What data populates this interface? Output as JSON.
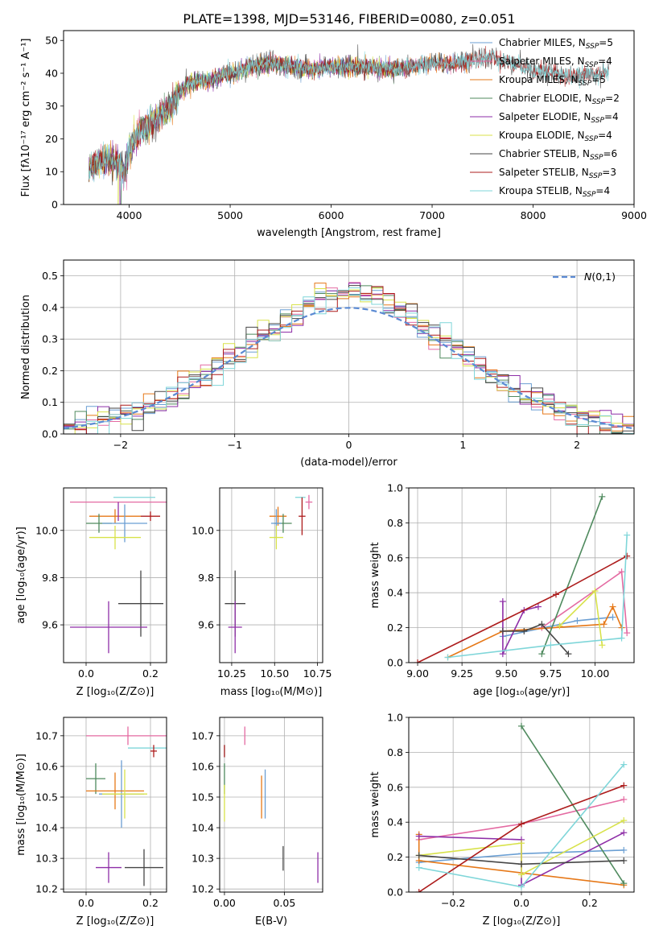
{
  "figure_title": "PLATE=1398, MJD=53146, FIBERID=0080, z=0.051",
  "colors": [
    "#6b9fd3",
    "#e46aa2",
    "#e67818",
    "#4f8a5e",
    "#8e2ea7",
    "#d8e24a",
    "#464646",
    "#ad1c1c",
    "#7fd6d9"
  ],
  "chart_data": [
    {
      "id": "spectrum",
      "type": "line",
      "title": "PLATE=1398, MJD=53146, FIBERID=0080, z=0.051",
      "xlabel": "wavelength [Angstrom, rest frame]",
      "ylabel": "Flux [fλ10⁻¹⁷ erg cm⁻² s⁻¹ A⁻¹]",
      "xlim": [
        3350,
        9000
      ],
      "ylim": [
        0,
        53
      ],
      "xticks": [
        4000,
        5000,
        6000,
        7000,
        8000,
        9000
      ],
      "yticks": [
        0,
        10,
        20,
        30,
        40,
        50
      ],
      "grid": false,
      "legend_position": "upper right",
      "continuum": {
        "x": [
          3600,
          3700,
          3800,
          3900,
          3950,
          4000,
          4100,
          4200,
          4300,
          4400,
          4500,
          4600,
          4800,
          5000,
          5200,
          5400,
          5600,
          5800,
          6000,
          6200,
          6400,
          6600,
          6800,
          7000,
          7200,
          7400,
          7600,
          7800,
          8000,
          8200,
          8400,
          8600,
          8750
        ],
        "y": [
          11,
          13,
          14,
          13,
          9,
          17,
          22,
          24,
          27,
          29,
          34,
          37,
          38,
          40,
          42,
          43,
          42,
          41,
          42,
          42,
          42,
          41,
          42,
          43,
          43,
          44,
          45,
          43,
          41,
          40,
          39,
          40,
          40
        ]
      },
      "series": [
        {
          "name": "Chabrier MILES, N_SSP=5",
          "legend_main": "Chabrier MILES, N",
          "legend_sub": "SSP",
          "legend_tail": "=5",
          "xmax": 7400
        },
        {
          "name": "Salpeter MILES, N_SSP=4",
          "legend_main": "Salpeter MILES, N",
          "legend_sub": "SSP",
          "legend_tail": "=4",
          "xmax": 7400
        },
        {
          "name": "Kroupa MILES, N_SSP=5",
          "legend_main": "Kroupa MILES, N",
          "legend_sub": "SSP",
          "legend_tail": "=5",
          "xmax": 7400,
          "drops": [
            7405
          ]
        },
        {
          "name": "Chabrier ELODIE, N_SSP=2",
          "legend_main": "Chabrier ELODIE, N",
          "legend_sub": "SSP",
          "legend_tail": "=2",
          "xmax": 6790,
          "drops": [
            3920
          ]
        },
        {
          "name": "Salpeter ELODIE, N_SSP=4",
          "legend_main": "Salpeter ELODIE, N",
          "legend_sub": "SSP",
          "legend_tail": "=4",
          "xmax": 6790,
          "drops": [
            3910
          ]
        },
        {
          "name": "Kroupa ELODIE, N_SSP=4",
          "legend_main": "Kroupa ELODIE, N",
          "legend_sub": "SSP",
          "legend_tail": "=4",
          "xmax": 6790,
          "drops": [
            3890,
            6795
          ]
        },
        {
          "name": "Chabrier STELIB, N_SSP=6",
          "legend_main": "Chabrier STELIB, N",
          "legend_sub": "SSP",
          "legend_tail": "=6",
          "xmax": 8750
        },
        {
          "name": "Salpeter STELIB, N_SSP=3",
          "legend_main": "Salpeter STELIB, N",
          "legend_sub": "SSP",
          "legend_tail": "=3",
          "xmax": 8750
        },
        {
          "name": "Kroupa STELIB, N_SSP=4",
          "legend_main": "Kroupa STELIB, N",
          "legend_sub": "SSP",
          "legend_tail": "=4",
          "xmax": 8750
        }
      ]
    },
    {
      "id": "residuals",
      "type": "step",
      "xlabel": "(data-model)/error",
      "ylabel": "Normed distribution",
      "xlim": [
        -2.5,
        2.5
      ],
      "ylim": [
        0,
        0.55
      ],
      "xticks": [
        -2,
        -1,
        0,
        1,
        2
      ],
      "yticks": [
        0.0,
        0.1,
        0.2,
        0.3,
        0.4,
        0.5
      ],
      "grid": true,
      "bin_edges_start": -2.5,
      "bin_width": 0.1,
      "normal_curve": {
        "label": "N(0,1)",
        "mean": 0,
        "sigma": 1,
        "style": "dashed"
      },
      "legend_position": "upper right"
    },
    {
      "id": "age-vs-Z",
      "type": "errorbar",
      "xlabel": "Z [log₁₀(Z/Z⊙)]",
      "ylabel": "age  [log₁₀(age/yr)]",
      "xlim": [
        -0.07,
        0.25
      ],
      "ylim": [
        9.44,
        10.18
      ],
      "xticks": [
        0.0,
        0.2
      ],
      "yticks": [
        9.6,
        9.8,
        10.0
      ],
      "grid": true,
      "points": [
        {
          "series": 8,
          "x": 0.15,
          "y": 10.14,
          "xerr": 0.065,
          "yerr": 0.0
        },
        {
          "series": 1,
          "x": 0.1,
          "y": 10.12,
          "xerr": 0.15,
          "yerr": 0.0
        },
        {
          "series": 2,
          "x": 0.09,
          "y": 10.06,
          "xerr": 0.08,
          "yerr": 0.03
        },
        {
          "series": 7,
          "x": 0.2,
          "y": 10.06,
          "xerr": 0.03,
          "yerr": 0.02
        },
        {
          "series": 3,
          "x": 0.04,
          "y": 10.03,
          "xerr": 0.04,
          "yerr": 0.04
        },
        {
          "series": 0,
          "x": 0.12,
          "y": 10.03,
          "xerr": 0.07,
          "yerr": 0.08
        },
        {
          "series": 5,
          "x": 0.09,
          "y": 9.97,
          "xerr": 0.08,
          "yerr": 0.05
        },
        {
          "series": 4,
          "x": 0.1,
          "y": 10.08,
          "xerr": 0.0,
          "yerr": 0.04
        },
        {
          "series": 6,
          "x": 0.17,
          "y": 9.69,
          "xerr": 0.07,
          "yerr": 0.14
        },
        {
          "series": 4,
          "x": 0.07,
          "y": 9.59,
          "xerr": 0.12,
          "yerr": 0.11
        }
      ]
    },
    {
      "id": "age-vs-mass",
      "type": "errorbar",
      "xlabel": "mass [log₁₀(M/M⊙)]",
      "ylabel": "",
      "xlim": [
        10.18,
        10.78
      ],
      "ylim": [
        9.44,
        10.18
      ],
      "xticks": [
        10.25,
        10.5,
        10.75
      ],
      "yticks": [
        9.6,
        9.8,
        10.0
      ],
      "grid": true,
      "points": [
        {
          "series": 8,
          "x": 10.65,
          "y": 10.14,
          "xerr": 0.03,
          "yerr": 0.0
        },
        {
          "series": 1,
          "x": 10.7,
          "y": 10.12,
          "xerr": 0.02,
          "yerr": 0.03
        },
        {
          "series": 2,
          "x": 10.52,
          "y": 10.06,
          "xerr": 0.05,
          "yerr": 0.04
        },
        {
          "series": 7,
          "x": 10.66,
          "y": 10.06,
          "xerr": 0.02,
          "yerr": 0.08
        },
        {
          "series": 3,
          "x": 10.55,
          "y": 10.03,
          "xerr": 0.05,
          "yerr": 0.04
        },
        {
          "series": 0,
          "x": 10.51,
          "y": 10.03,
          "xerr": 0.03,
          "yerr": 0.06
        },
        {
          "series": 5,
          "x": 10.51,
          "y": 9.97,
          "xerr": 0.04,
          "yerr": 0.05
        },
        {
          "series": 6,
          "x": 10.27,
          "y": 9.69,
          "xerr": 0.06,
          "yerr": 0.14
        },
        {
          "series": 4,
          "x": 10.27,
          "y": 9.59,
          "xerr": 0.04,
          "yerr": 0.11
        }
      ]
    },
    {
      "id": "weight-vs-age",
      "type": "line",
      "xlabel": "age  [log₁₀(age/yr)]",
      "ylabel": "mass weight",
      "xlim": [
        8.95,
        10.22
      ],
      "ylim": [
        0,
        1.0
      ],
      "xticks": [
        9.0,
        9.25,
        9.5,
        9.75,
        10.0
      ],
      "yticks": [
        0.0,
        0.2,
        0.4,
        0.6,
        0.8,
        1.0
      ],
      "grid": true,
      "series": [
        {
          "series": 0,
          "x": [
            9.48,
            9.9,
            10.1
          ],
          "y": [
            0.15,
            0.24,
            0.26
          ]
        },
        {
          "series": 1,
          "x": [
            9.7,
            10.15,
            10.18
          ],
          "y": [
            0.2,
            0.52,
            0.17
          ]
        },
        {
          "series": 2,
          "x": [
            9.17,
            9.48,
            10.05,
            10.1,
            10.15
          ],
          "y": [
            0.03,
            0.18,
            0.22,
            0.32,
            0.2
          ]
        },
        {
          "series": 3,
          "x": [
            9.7,
            10.04
          ],
          "y": [
            0.05,
            0.95
          ]
        },
        {
          "series": 4,
          "x": [
            9.48,
            9.48,
            9.6,
            9.68
          ],
          "y": [
            0.35,
            0.05,
            0.3,
            0.32
          ]
        },
        {
          "series": 5,
          "x": [
            9.8,
            10.0,
            10.04
          ],
          "y": [
            0.21,
            0.41,
            0.1
          ]
        },
        {
          "series": 6,
          "x": [
            9.48,
            9.6,
            9.7,
            9.85
          ],
          "y": [
            0.18,
            0.18,
            0.22,
            0.05
          ]
        },
        {
          "series": 7,
          "x": [
            9.0,
            9.78,
            10.18
          ],
          "y": [
            0.0,
            0.39,
            0.61
          ]
        },
        {
          "series": 8,
          "x": [
            9.17,
            9.75,
            10.15,
            10.18
          ],
          "y": [
            0.03,
            0.1,
            0.14,
            0.73
          ]
        }
      ]
    },
    {
      "id": "mass-vs-Z",
      "type": "errorbar",
      "xlabel": "Z [log₁₀(Z/Z⊙)]",
      "ylabel": "mass [log₁₀(M/M⊙)]",
      "xlim": [
        -0.07,
        0.25
      ],
      "ylim": [
        10.19,
        10.76
      ],
      "xticks": [
        0.0,
        0.2
      ],
      "yticks": [
        10.2,
        10.3,
        10.4,
        10.5,
        10.6,
        10.7
      ],
      "grid": true,
      "points": [
        {
          "series": 1,
          "x": 0.13,
          "y": 10.7,
          "xerr": 0.13,
          "yerr": 0.03
        },
        {
          "series": 8,
          "x": 0.19,
          "y": 10.66,
          "xerr": 0.06,
          "yerr": 0.0
        },
        {
          "series": 7,
          "x": 0.21,
          "y": 10.65,
          "xerr": 0.01,
          "yerr": 0.02
        },
        {
          "series": 3,
          "x": 0.03,
          "y": 10.56,
          "xerr": 0.03,
          "yerr": 0.05
        },
        {
          "series": 0,
          "x": 0.11,
          "y": 10.51,
          "xerr": 0.07,
          "yerr": 0.11
        },
        {
          "series": 2,
          "x": 0.09,
          "y": 10.52,
          "xerr": 0.09,
          "yerr": 0.06
        },
        {
          "series": 5,
          "x": 0.12,
          "y": 10.51,
          "xerr": 0.07,
          "yerr": 0.08
        },
        {
          "series": 6,
          "x": 0.18,
          "y": 10.27,
          "xerr": 0.06,
          "yerr": 0.06
        },
        {
          "series": 4,
          "x": 0.07,
          "y": 10.27,
          "xerr": 0.04,
          "yerr": 0.05
        }
      ]
    },
    {
      "id": "mass-vs-EBV",
      "type": "errorbar",
      "xlabel": "E(B-V)",
      "ylabel": "",
      "xlim": [
        -0.004,
        0.082
      ],
      "ylim": [
        10.19,
        10.76
      ],
      "xticks": [
        0.0,
        0.05
      ],
      "yticks": [
        10.2,
        10.3,
        10.4,
        10.5,
        10.6,
        10.7
      ],
      "grid": true,
      "points": [
        {
          "series": 1,
          "x": 0.017,
          "y": 10.7,
          "xerr": 0.0,
          "yerr": 0.03
        },
        {
          "series": 8,
          "x": 0.0,
          "y": 10.65,
          "xerr": 0.0,
          "yerr": 0.02
        },
        {
          "series": 7,
          "x": 0.0,
          "y": 10.65,
          "xerr": 0.0,
          "yerr": 0.02
        },
        {
          "series": 3,
          "x": 0.0,
          "y": 10.56,
          "xerr": 0.0,
          "yerr": 0.05
        },
        {
          "series": 0,
          "x": 0.034,
          "y": 10.51,
          "xerr": 0.0,
          "yerr": 0.08
        },
        {
          "series": 2,
          "x": 0.031,
          "y": 10.5,
          "xerr": 0.0,
          "yerr": 0.07
        },
        {
          "series": 5,
          "x": 0.0,
          "y": 10.48,
          "xerr": 0.0,
          "yerr": 0.06
        },
        {
          "series": 6,
          "x": 0.049,
          "y": 10.3,
          "xerr": 0.0,
          "yerr": 0.04
        },
        {
          "series": 4,
          "x": 0.078,
          "y": 10.27,
          "xerr": 0.0,
          "yerr": 0.05
        }
      ]
    },
    {
      "id": "weight-vs-Z",
      "type": "line",
      "xlabel": "Z [log₁₀(Z/Z⊙)]",
      "ylabel": "mass weight",
      "xlim": [
        -0.33,
        0.33
      ],
      "ylim": [
        0,
        1.0
      ],
      "xticks": [
        -0.2,
        0.0,
        0.2
      ],
      "yticks": [
        0.0,
        0.2,
        0.4,
        0.6,
        0.8,
        1.0
      ],
      "grid": true,
      "series": [
        {
          "series": 0,
          "x": [
            -0.3,
            0.0,
            0.3
          ],
          "y": [
            0.17,
            0.22,
            0.24
          ]
        },
        {
          "series": 1,
          "x": [
            -0.3,
            0.0,
            0.3
          ],
          "y": [
            0.3,
            0.39,
            0.53
          ]
        },
        {
          "series": 2,
          "x": [
            -0.3,
            -0.3,
            0.3
          ],
          "y": [
            0.33,
            0.18,
            0.04
          ]
        },
        {
          "series": 3,
          "x": [
            0.0,
            0.3
          ],
          "y": [
            0.95,
            0.05
          ]
        },
        {
          "series": 4,
          "x": [
            -0.3,
            0.0,
            0.0,
            0.3
          ],
          "y": [
            0.32,
            0.3,
            0.04,
            0.34
          ]
        },
        {
          "series": 5,
          "x": [
            -0.3,
            0.0,
            0.0,
            0.3
          ],
          "y": [
            0.21,
            0.28,
            0.1,
            0.41
          ]
        },
        {
          "series": 6,
          "x": [
            -0.3,
            0.0,
            0.3
          ],
          "y": [
            0.21,
            0.16,
            0.18
          ]
        },
        {
          "series": 7,
          "x": [
            -0.3,
            0.0,
            0.3
          ],
          "y": [
            0.0,
            0.39,
            0.61
          ]
        },
        {
          "series": 8,
          "x": [
            -0.3,
            0.0,
            0.3
          ],
          "y": [
            0.14,
            0.03,
            0.73
          ]
        }
      ]
    }
  ]
}
